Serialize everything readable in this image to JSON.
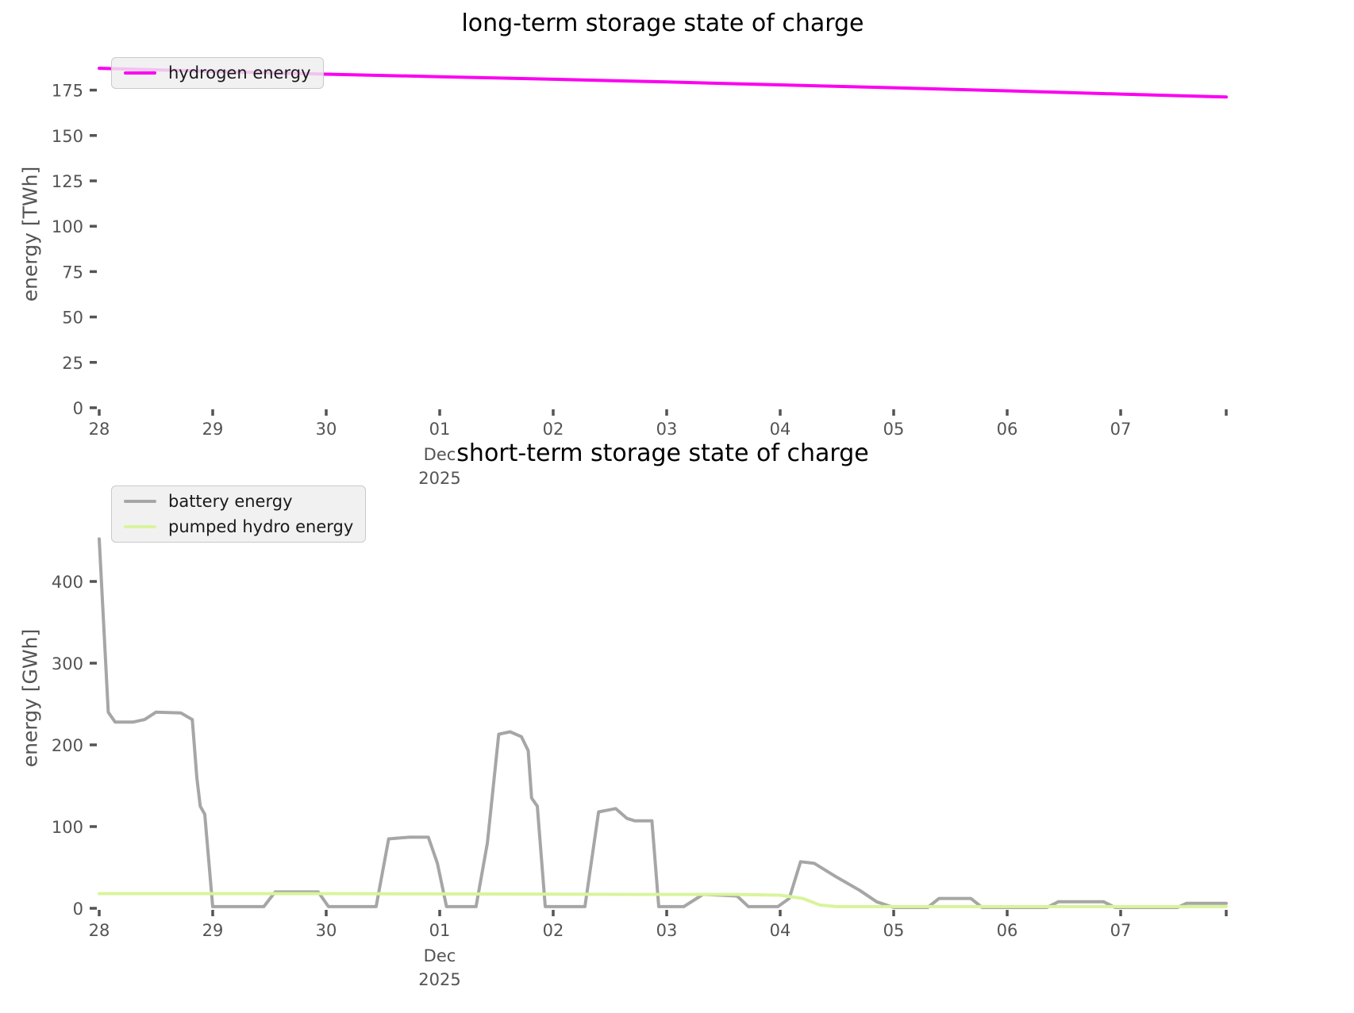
{
  "figure": {
    "background": "#ffffff",
    "tick_color": "#545454"
  },
  "chart_data": [
    {
      "type": "line",
      "title": "long-term storage state of charge",
      "ylabel": "energy [TWh]",
      "xlabel": "",
      "grid": false,
      "legend_position": "upper-left",
      "ylim": [
        0,
        192
      ],
      "xlim_days": [
        0,
        9.93
      ],
      "x_unit": "days from Nov 28, 2025",
      "x_tick_days": [
        0,
        1,
        2,
        3,
        4,
        5,
        6,
        7,
        8,
        9,
        9.93
      ],
      "x_tick_labels": [
        "28",
        "29",
        "30",
        "01",
        "02",
        "03",
        "04",
        "05",
        "06",
        "07",
        ""
      ],
      "x_context_day": 3,
      "x_context_lines": [
        "Dec",
        "2025"
      ],
      "y_ticks": [
        {
          "value": 0,
          "label": "0"
        },
        {
          "value": 25,
          "label": "25"
        },
        {
          "value": 50,
          "label": "50"
        },
        {
          "value": 75,
          "label": "75"
        },
        {
          "value": 100,
          "label": "100"
        },
        {
          "value": 125,
          "label": "125"
        },
        {
          "value": 150,
          "label": "150"
        },
        {
          "value": 175,
          "label": "175"
        }
      ],
      "series": [
        {
          "name": "hydrogen energy",
          "color": "#fb00f1",
          "x_days": [
            0,
            1,
            2,
            3,
            4,
            5,
            6,
            7,
            8,
            9,
            9.93
          ],
          "values": [
            187.0,
            185.3,
            183.8,
            182.4,
            181.0,
            179.5,
            177.9,
            176.3,
            174.6,
            172.8,
            171.2
          ]
        }
      ]
    },
    {
      "type": "line",
      "title": "short-term storage state of charge",
      "ylabel": "energy [GWh]",
      "xlabel": "",
      "grid": false,
      "legend_position": "upper-left",
      "ylim": [
        0,
        460
      ],
      "xlim_days": [
        0,
        9.93
      ],
      "x_unit": "days from Nov 28, 2025",
      "x_tick_days": [
        0,
        1,
        2,
        3,
        4,
        5,
        6,
        7,
        8,
        9,
        9.93
      ],
      "x_tick_labels": [
        "28",
        "29",
        "30",
        "01",
        "02",
        "03",
        "04",
        "05",
        "06",
        "07",
        ""
      ],
      "x_context_day": 3,
      "x_context_lines": [
        "Dec",
        "2025"
      ],
      "y_ticks": [
        {
          "value": 0,
          "label": "0"
        },
        {
          "value": 100,
          "label": "100"
        },
        {
          "value": 200,
          "label": "200"
        },
        {
          "value": 300,
          "label": "300"
        },
        {
          "value": 400,
          "label": "400"
        }
      ],
      "series": [
        {
          "name": "battery energy",
          "color": "#a6a6a6",
          "x_days": [
            0.0,
            0.08,
            0.14,
            0.3,
            0.4,
            0.5,
            0.72,
            0.82,
            0.86,
            0.89,
            0.93,
            1.0,
            1.45,
            1.55,
            1.93,
            2.02,
            2.44,
            2.55,
            2.73,
            2.9,
            2.98,
            3.06,
            3.32,
            3.42,
            3.52,
            3.62,
            3.72,
            3.78,
            3.81,
            3.86,
            3.93,
            4.28,
            4.4,
            4.55,
            4.65,
            4.72,
            4.87,
            4.93,
            5.15,
            5.32,
            5.62,
            5.72,
            5.98,
            6.08,
            6.18,
            6.3,
            6.5,
            6.7,
            6.85,
            7.0,
            7.3,
            7.4,
            7.68,
            7.78,
            8.35,
            8.45,
            8.85,
            8.95,
            9.5,
            9.58,
            9.93
          ],
          "values": [
            452,
            240,
            228,
            228,
            231,
            240,
            239,
            231,
            160,
            125,
            115,
            2,
            2,
            20,
            20,
            2,
            2,
            85,
            87,
            87,
            55,
            2,
            2,
            80,
            213,
            216,
            210,
            193,
            135,
            125,
            2,
            2,
            118,
            122,
            110,
            107,
            107,
            2,
            2,
            17,
            15,
            2,
            2,
            12,
            57,
            55,
            38,
            22,
            8,
            1,
            1,
            12,
            12,
            1,
            1,
            8,
            8,
            1,
            1,
            6,
            6
          ]
        },
        {
          "name": "pumped hydro energy",
          "color": "#d9f49c",
          "x_days": [
            0.0,
            2.0,
            4.8,
            5.6,
            6.0,
            6.2,
            6.35,
            6.5,
            9.93
          ],
          "values": [
            18,
            18,
            17,
            17,
            16,
            12,
            4,
            2,
            2
          ]
        }
      ]
    }
  ]
}
